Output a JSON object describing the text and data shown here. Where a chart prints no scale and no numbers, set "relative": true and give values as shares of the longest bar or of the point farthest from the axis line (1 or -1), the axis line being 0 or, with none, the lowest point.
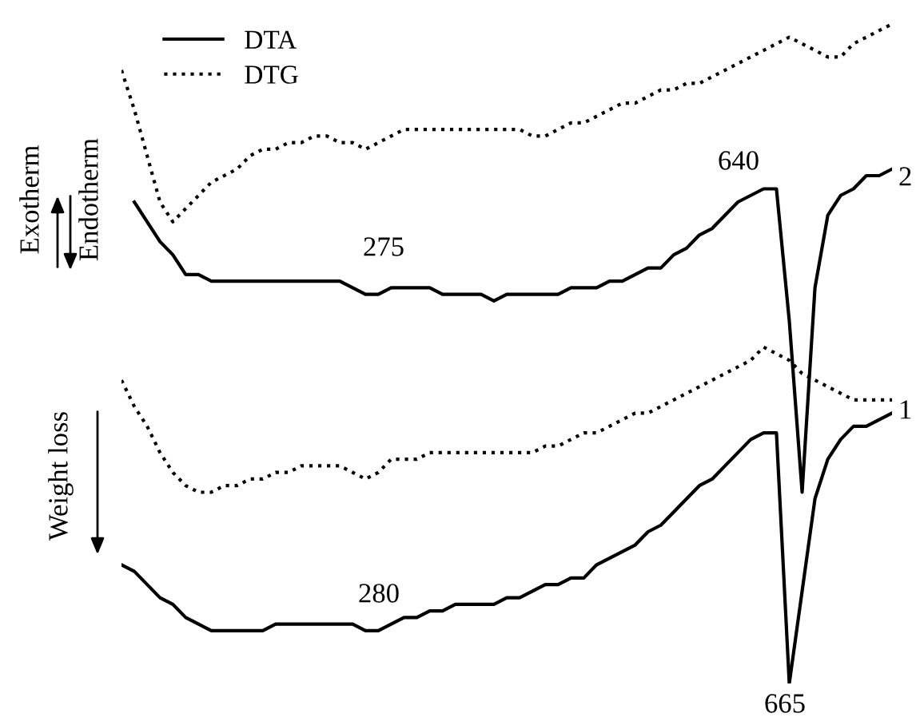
{
  "chart_data": {
    "type": "line",
    "relative": true,
    "legend": "top left",
    "marker": "none",
    "categories": [
      null,
      null,
      null,
      null,
      null,
      null,
      null,
      null,
      null,
      null,
      null,
      null,
      null,
      null,
      null,
      null,
      null,
      null,
      null,
      null,
      null,
      null,
      null,
      null,
      null,
      null,
      null,
      null,
      null,
      null,
      null,
      null,
      null,
      null,
      null,
      null,
      null,
      null,
      null,
      null,
      null,
      null,
      null,
      null,
      null,
      null,
      null,
      null,
      null,
      null,
      null,
      null,
      null,
      null,
      null,
      null,
      null,
      null,
      null,
      null,
      null
    ],
    "series": [
      {
        "name": "DTA",
        "color": "#000000",
        "line_style": "solid",
        "values": [
          null,
          0.73,
          0.7,
          0.67,
          0.65,
          0.62,
          0.62,
          0.61,
          0.61,
          0.61,
          0.61,
          0.61,
          0.61,
          0.61,
          0.61,
          0.61,
          0.61,
          0.61,
          0.6,
          0.59,
          0.59,
          0.6,
          0.6,
          0.6,
          0.6,
          0.59,
          0.59,
          0.59,
          0.59,
          0.58,
          0.59,
          0.59,
          0.59,
          0.59,
          0.59,
          0.6,
          0.6,
          0.6,
          0.61,
          0.61,
          0.62,
          0.63,
          0.63,
          0.65,
          0.66,
          0.68,
          0.69,
          0.71,
          0.73,
          0.74,
          0.75,
          0.75,
          0.55,
          0.29,
          0.6,
          0.71,
          0.74,
          0.75,
          0.77,
          0.77,
          0.78
        ]
      },
      {
        "name": "DTG",
        "color": "#000000",
        "line_style": "dotted",
        "values": [
          0.93,
          0.87,
          0.8,
          0.73,
          0.7,
          0.72,
          0.74,
          0.76,
          0.77,
          0.78,
          0.8,
          0.81,
          0.81,
          0.82,
          0.82,
          0.83,
          0.83,
          0.82,
          0.82,
          0.81,
          0.82,
          0.83,
          0.84,
          0.84,
          0.84,
          0.84,
          0.84,
          0.84,
          0.84,
          0.84,
          0.84,
          0.84,
          0.83,
          0.83,
          0.84,
          0.85,
          0.85,
          0.86,
          0.87,
          0.88,
          0.88,
          0.89,
          0.9,
          0.9,
          0.91,
          0.91,
          0.92,
          0.93,
          0.94,
          0.95,
          0.96,
          0.97,
          0.98,
          0.97,
          0.96,
          0.95,
          0.95,
          0.97,
          0.98,
          0.99,
          1
        ]
      },
      {
        "color": "#000000",
        "line_style": "dotted",
        "values": [
          0.46,
          0.42,
          0.39,
          0.35,
          0.32,
          0.3,
          0.29,
          0.29,
          0.3,
          0.3,
          0.31,
          0.31,
          0.32,
          0.32,
          0.33,
          0.33,
          0.33,
          0.33,
          0.32,
          0.31,
          0.32,
          0.34,
          0.34,
          0.34,
          0.35,
          0.35,
          0.35,
          0.35,
          0.35,
          0.35,
          0.35,
          0.35,
          0.35,
          0.36,
          0.36,
          0.37,
          0.38,
          0.38,
          0.39,
          0.4,
          0.41,
          0.41,
          0.42,
          0.43,
          0.44,
          0.45,
          0.46,
          0.47,
          0.48,
          0.49,
          0.51,
          0.5,
          0.49,
          0.47,
          0.46,
          0.45,
          0.44,
          0.43,
          0.43,
          0.43,
          0.43
        ]
      },
      {
        "color": "#000000",
        "line_style": "solid",
        "values": [
          0.18,
          0.17,
          0.15,
          0.13,
          0.12,
          0.1,
          0.09,
          0.08,
          0.08,
          0.08,
          0.08,
          0.08,
          0.09,
          0.09,
          0.09,
          0.09,
          0.09,
          0.09,
          0.09,
          0.08,
          0.08,
          0.09,
          0.1,
          0.1,
          0.11,
          0.11,
          0.12,
          0.12,
          0.12,
          0.12,
          0.13,
          0.13,
          0.14,
          0.15,
          0.15,
          0.16,
          0.16,
          0.18,
          0.19,
          0.2,
          0.21,
          0.23,
          0.24,
          0.26,
          0.28,
          0.3,
          0.31,
          0.33,
          0.35,
          0.37,
          0.38,
          0.38,
          0,
          0.14,
          0.28,
          0.34,
          0.37,
          0.39,
          0.39,
          0.4,
          0.41
        ]
      }
    ],
    "annotations": [
      "275",
      "640",
      "280",
      "665",
      "2",
      "1",
      "Exotherm",
      "Endotherm",
      "Weight loss"
    ]
  }
}
